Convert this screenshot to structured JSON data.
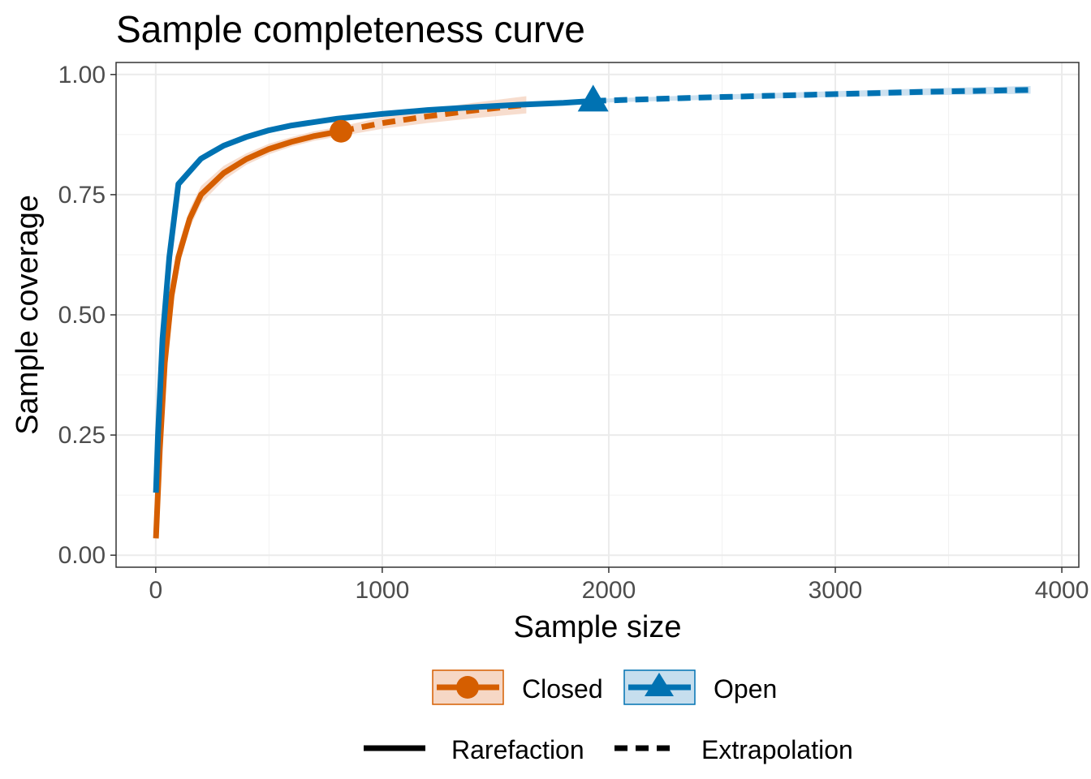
{
  "chart_data": {
    "type": "line",
    "title": "Sample completeness curve",
    "xlabel": "Sample size",
    "ylabel": "Sample coverage",
    "xlim": [
      -175,
      4075
    ],
    "ylim": [
      -0.025,
      1.025
    ],
    "x_ticks": [
      0,
      1000,
      2000,
      3000,
      4000
    ],
    "x_tick_labels": [
      "0",
      "1000",
      "2000",
      "3000",
      "4000"
    ],
    "y_ticks": [
      0,
      0.25,
      0.5,
      0.75,
      1.0
    ],
    "y_tick_labels": [
      "0.00",
      "0.25",
      "0.50",
      "0.75",
      "1.00"
    ],
    "grid": true,
    "legend_position": "bottom",
    "series": [
      {
        "name": "Closed",
        "color": "#D55E00",
        "fill": "#F6D7C5",
        "marker": "circle",
        "observed": {
          "x": 818,
          "y": 0.882
        },
        "rarefaction": {
          "x": [
            1,
            18,
            40,
            70,
            100,
            150,
            200,
            300,
            400,
            500,
            600,
            700,
            818
          ],
          "y": [
            0.035,
            0.22,
            0.4,
            0.54,
            0.62,
            0.7,
            0.75,
            0.795,
            0.824,
            0.845,
            0.86,
            0.872,
            0.882
          ]
        },
        "extrapolation": {
          "x": [
            818,
            1000,
            1200,
            1400,
            1636
          ],
          "y": [
            0.882,
            0.899,
            0.913,
            0.925,
            0.937
          ]
        },
        "ci_halfwidth": [
          0.01,
          0.02,
          0.025,
          0.025,
          0.025,
          0.02,
          0.018,
          0.015,
          0.012,
          0.011,
          0.01,
          0.01,
          0.01,
          0.012,
          0.014,
          0.016,
          0.018
        ]
      },
      {
        "name": "Open",
        "color": "#0072B2",
        "fill": "#C6DEEE",
        "marker": "triangle",
        "observed": {
          "x": 1931,
          "y": 0.945
        },
        "rarefaction": {
          "x": [
            1,
            10,
            30,
            60,
            100,
            200,
            300,
            400,
            500,
            600,
            800,
            1000,
            1200,
            1400,
            1600,
            1800,
            1931
          ],
          "y": [
            0.13,
            0.25,
            0.45,
            0.62,
            0.772,
            0.825,
            0.852,
            0.87,
            0.884,
            0.894,
            0.908,
            0.918,
            0.926,
            0.932,
            0.937,
            0.941,
            0.945
          ]
        },
        "extrapolation": {
          "x": [
            1931,
            2400,
            2900,
            3400,
            3862
          ],
          "y": [
            0.945,
            0.952,
            0.958,
            0.964,
            0.968
          ]
        },
        "ci_halfwidth": [
          0.01,
          0.012,
          0.012,
          0.01,
          0.008,
          0.006,
          0.005,
          0.005,
          0.004,
          0.004,
          0.004,
          0.004,
          0.004,
          0.004,
          0.004,
          0.004,
          0.004,
          0.005,
          0.006,
          0.007,
          0.008
        ]
      }
    ],
    "linetype_legend": [
      "Rarefaction",
      "Extrapolation"
    ]
  }
}
